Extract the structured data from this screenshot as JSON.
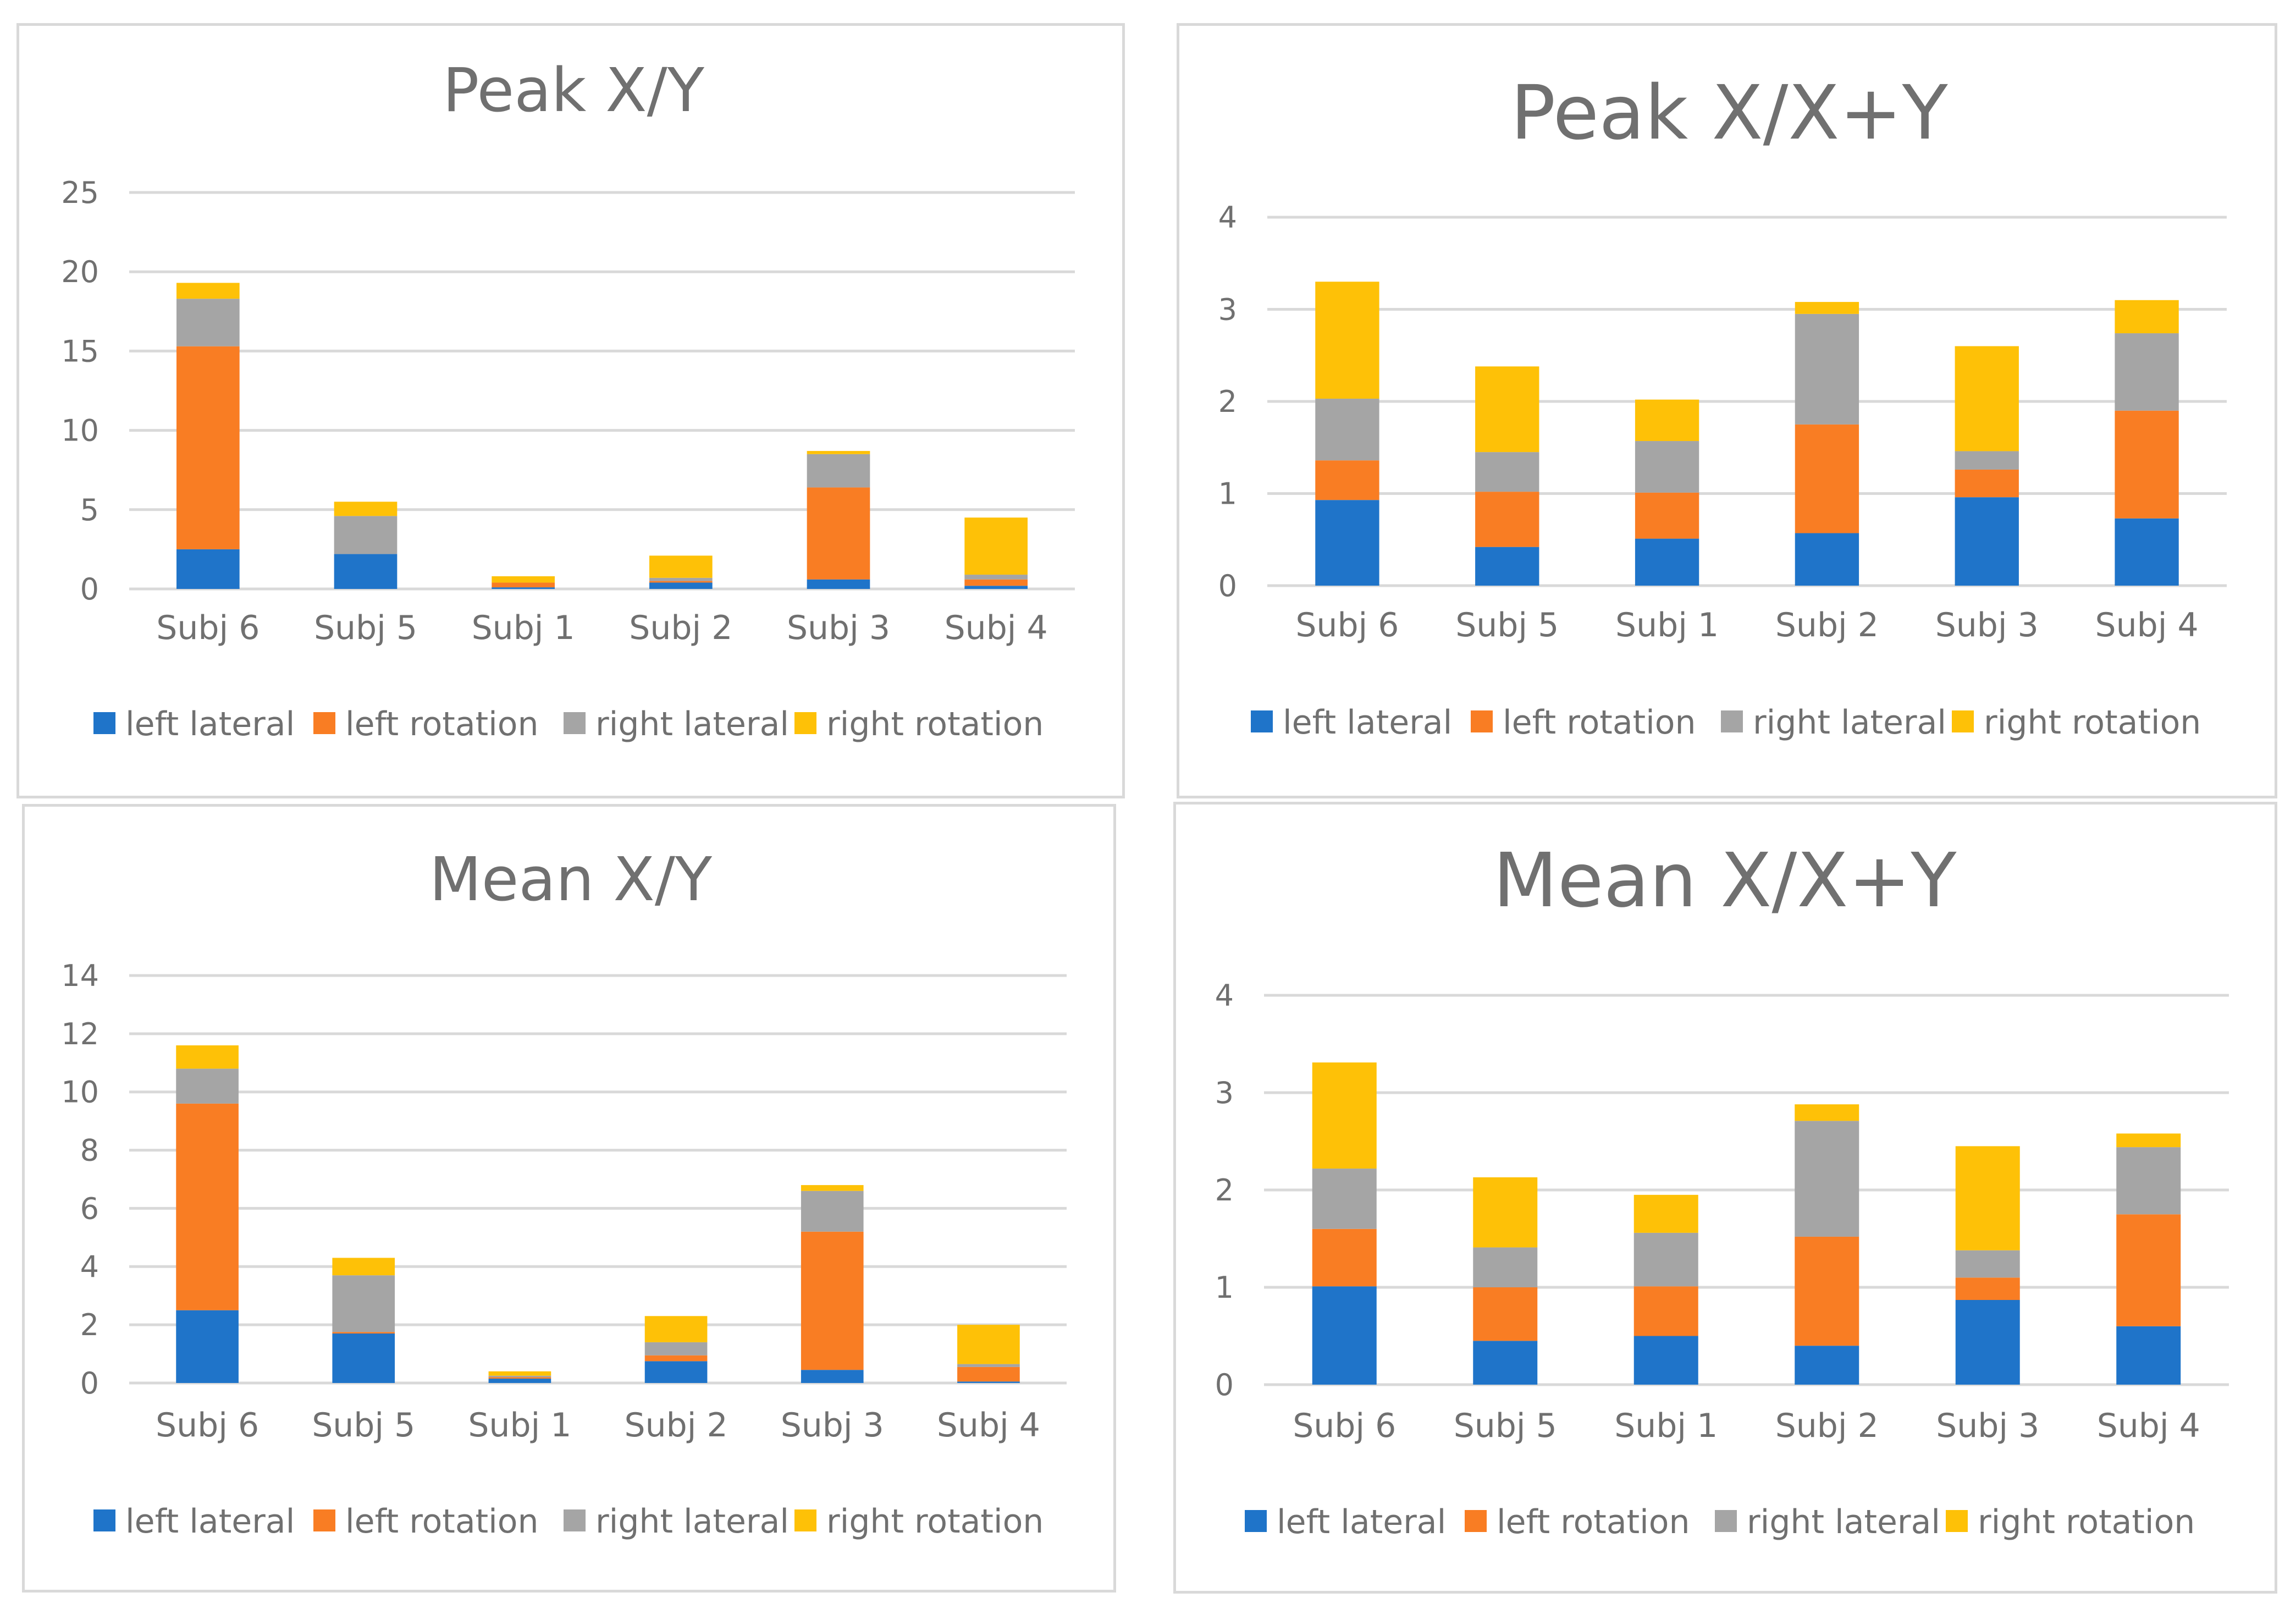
{
  "colors": {
    "left lateral": "#1f74c9",
    "left rotation": "#f97d23",
    "right lateral": "#a5a5a5",
    "right rotation": "#fec107"
  },
  "chart_data": [
    {
      "type": "bar",
      "stacked": true,
      "title": "Peak X/Y",
      "categories": [
        "Subj 6",
        "Subj 5",
        "Subj 1",
        "Subj 2",
        "Subj 3",
        "Subj 4"
      ],
      "ylim": [
        0,
        25
      ],
      "yticks": [
        0,
        5,
        10,
        15,
        20,
        25
      ],
      "grid": true,
      "legend": "bottom",
      "series": [
        {
          "name": "left lateral",
          "values": [
            2.5,
            2.2,
            0.1,
            0.4,
            0.6,
            0.2
          ]
        },
        {
          "name": "left rotation",
          "values": [
            12.8,
            0.0,
            0.3,
            0.1,
            5.8,
            0.4
          ]
        },
        {
          "name": "right lateral",
          "values": [
            3.0,
            2.4,
            0.0,
            0.2,
            2.1,
            0.3
          ]
        },
        {
          "name": "right rotation",
          "values": [
            1.0,
            0.9,
            0.4,
            1.4,
            0.2,
            3.6
          ]
        }
      ]
    },
    {
      "type": "bar",
      "stacked": true,
      "title": "Peak X/X+Y",
      "categories": [
        "Subj 6",
        "Subj 5",
        "Subj 1",
        "Subj 2",
        "Subj 3",
        "Subj 4"
      ],
      "ylim": [
        0,
        4
      ],
      "yticks": [
        0,
        1,
        2,
        3,
        4
      ],
      "grid": true,
      "legend": "bottom",
      "series": [
        {
          "name": "left lateral",
          "values": [
            0.93,
            0.42,
            0.51,
            0.57,
            0.96,
            0.73
          ]
        },
        {
          "name": "left rotation",
          "values": [
            0.43,
            0.6,
            0.5,
            1.18,
            0.3,
            1.17
          ]
        },
        {
          "name": "right lateral",
          "values": [
            0.67,
            0.43,
            0.56,
            1.2,
            0.2,
            0.84
          ]
        },
        {
          "name": "right rotation",
          "values": [
            1.27,
            0.93,
            0.45,
            0.13,
            1.14,
            0.36
          ]
        }
      ]
    },
    {
      "type": "bar",
      "stacked": true,
      "title": "Mean X/Y",
      "categories": [
        "Subj 6",
        "Subj 5",
        "Subj 1",
        "Subj 2",
        "Subj 3",
        "Subj 4"
      ],
      "ylim": [
        0,
        14
      ],
      "yticks": [
        0,
        2,
        4,
        6,
        8,
        10,
        12,
        14
      ],
      "grid": true,
      "legend": "bottom",
      "series": [
        {
          "name": "left lateral",
          "values": [
            2.5,
            1.7,
            0.15,
            0.75,
            0.45,
            0.05
          ]
        },
        {
          "name": "left rotation",
          "values": [
            7.1,
            0.05,
            0.05,
            0.2,
            4.75,
            0.5
          ]
        },
        {
          "name": "right lateral",
          "values": [
            1.2,
            1.95,
            0.05,
            0.45,
            1.4,
            0.1
          ]
        },
        {
          "name": "right rotation",
          "values": [
            0.8,
            0.6,
            0.15,
            0.9,
            0.2,
            1.35
          ]
        }
      ]
    },
    {
      "type": "bar",
      "stacked": true,
      "title": "Mean X/X+Y",
      "categories": [
        "Subj 6",
        "Subj 5",
        "Subj 1",
        "Subj 2",
        "Subj 3",
        "Subj 4"
      ],
      "ylim": [
        0,
        4
      ],
      "yticks": [
        0,
        1,
        2,
        3,
        4
      ],
      "grid": true,
      "legend": "bottom",
      "series": [
        {
          "name": "left lateral",
          "values": [
            1.01,
            0.45,
            0.5,
            0.4,
            0.87,
            0.6
          ]
        },
        {
          "name": "left rotation",
          "values": [
            0.59,
            0.55,
            0.51,
            1.12,
            0.23,
            1.15
          ]
        },
        {
          "name": "right lateral",
          "values": [
            0.62,
            0.41,
            0.55,
            1.19,
            0.28,
            0.69
          ]
        },
        {
          "name": "right rotation",
          "values": [
            1.09,
            0.72,
            0.39,
            0.17,
            1.07,
            0.14
          ]
        }
      ]
    }
  ]
}
